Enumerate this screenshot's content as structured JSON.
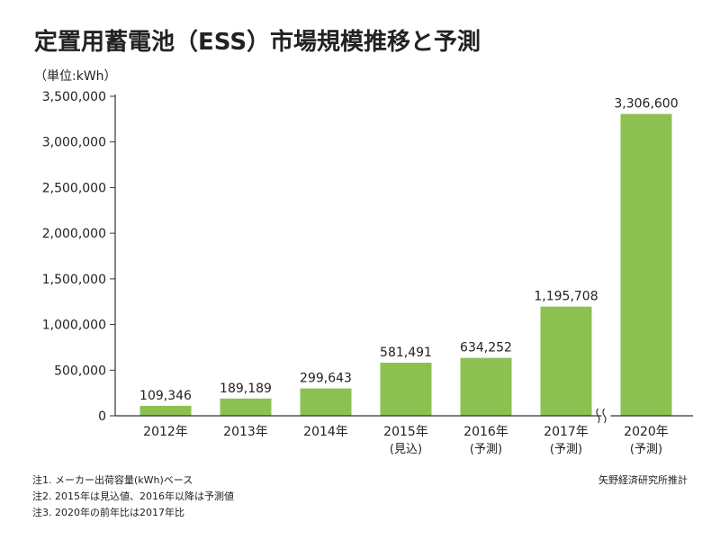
{
  "chart_data": {
    "type": "bar",
    "title": "定置用蓄電池（ESS）市場規模推移と予測",
    "ylabel": "（単位:kWh）",
    "categories": [
      {
        "line1": "2012年",
        "line2": ""
      },
      {
        "line1": "2013年",
        "line2": ""
      },
      {
        "line1": "2014年",
        "line2": ""
      },
      {
        "line1": "2015年",
        "line2": "(見込)"
      },
      {
        "line1": "2016年",
        "line2": "(予測)"
      },
      {
        "line1": "2017年",
        "line2": "(予測)"
      },
      {
        "line1": "2020年",
        "line2": "(予測)"
      }
    ],
    "values": [
      109346,
      189189,
      299643,
      581491,
      634252,
      1195708,
      3306600
    ],
    "data_labels": [
      "109,346",
      "189,189",
      "299,643",
      "581,491",
      "634,252",
      "1,195,708",
      "3,306,600"
    ],
    "ylim": [
      0,
      3500000
    ],
    "yticks": [
      0,
      500000,
      1000000,
      1500000,
      2000000,
      2500000,
      3000000,
      3500000
    ],
    "ytick_labels": [
      "0",
      "500,000",
      "1,000,000",
      "1,500,000",
      "2,000,000",
      "2,500,000",
      "3,000,000",
      "3,500,000"
    ],
    "axis_break_after_index": 5,
    "grid": false,
    "bar_color": "#8cc152",
    "axis_color": "#333333"
  },
  "footnotes": [
    "注1. メーカー出荷容量(kWh)ベース",
    "注2. 2015年は見込値、2016年以降は予測値",
    "注3. 2020年の前年比は2017年比"
  ],
  "source": "矢野経済研究所推計"
}
